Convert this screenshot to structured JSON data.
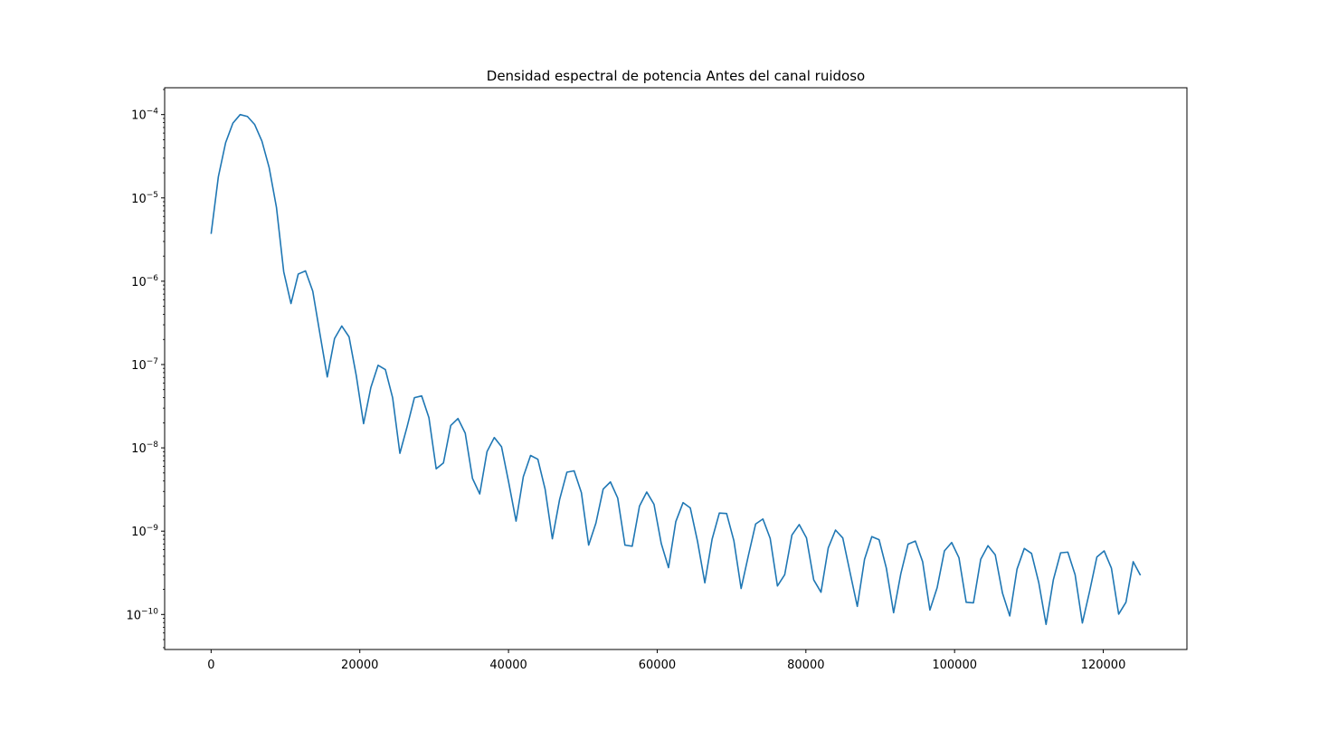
{
  "chart_data": {
    "type": "line",
    "title": "Densidad espectral de potencia Antes del canal ruidoso",
    "xlabel": "",
    "ylabel": "",
    "yscale": "log",
    "xlim": [
      -6250,
      131250
    ],
    "ylim": [
      3.8e-11,
      0.00021
    ],
    "x_ticks": [
      0,
      20000,
      40000,
      60000,
      80000,
      100000,
      120000
    ],
    "x_tick_labels": [
      "0",
      "20000",
      "40000",
      "60000",
      "80000",
      "100000",
      "120000"
    ],
    "y_ticks": [
      1e-10,
      1e-09,
      1e-08,
      1e-07,
      1e-06,
      1e-05,
      0.0001
    ],
    "y_tick_labels": [
      {
        "base": "10",
        "exp": "−10"
      },
      {
        "base": "10",
        "exp": "−9"
      },
      {
        "base": "10",
        "exp": "−8"
      },
      {
        "base": "10",
        "exp": "−7"
      },
      {
        "base": "10",
        "exp": "−6"
      },
      {
        "base": "10",
        "exp": "−5"
      },
      {
        "base": "10",
        "exp": "−4"
      }
    ],
    "grid": false,
    "line_color": "#1f77b4",
    "series": [
      {
        "x": [
          0,
          976.6,
          1953.1,
          2929.7,
          3906.3,
          4882.8,
          5859.4,
          6835.9,
          7812.5,
          8789.1,
          9765.6,
          10742.2,
          11718.8,
          12695.3,
          13671.9,
          14648.4,
          15625,
          16601.6,
          17578.1,
          18554.7,
          19531.3,
          20507.8,
          21484.4,
          22460.9,
          23437.5,
          24414.1,
          25390.6,
          26367.2,
          27343.8,
          28320.3,
          29296.9,
          30273.4,
          31250,
          32226.6,
          33203.1,
          34179.7,
          35156.3,
          36132.8,
          37109.4,
          38085.9,
          39062.5,
          40039.1,
          41015.6,
          41992.2,
          42968.8,
          43945.3,
          44921.9,
          45898.4,
          46875,
          47851.6,
          48828.1,
          49804.7,
          50781.3,
          51757.8,
          52734.4,
          53710.9,
          54687.5,
          55664.1,
          56640.6,
          57617.2,
          58593.8,
          59570.3,
          60546.9,
          61523.4,
          62500,
          63476.6,
          64453.1,
          65429.7,
          66406.3,
          67382.8,
          68359.4,
          69335.9,
          70312.5,
          71289.1,
          72265.6,
          73242.2,
          74218.8,
          75195.3,
          76171.9,
          77148.4,
          78125,
          79101.6,
          80078.1,
          81054.7,
          82031.3,
          83007.8,
          83984.4,
          84960.9,
          85937.5,
          86914.1,
          87890.6,
          88867.2,
          89843.8,
          90820.3,
          91796.9,
          92773.4,
          93750,
          94726.6,
          95703.1,
          96679.7,
          97656.3,
          98632.8,
          99609.4,
          100585.9,
          101562.5,
          102539.1,
          103515.6,
          104492.2,
          105468.8,
          106445.3,
          107421.9,
          108398.4,
          109375,
          110351.6,
          111328.1,
          112304.7,
          113281.3,
          114257.8,
          115234.4,
          116210.9,
          117187.5,
          118164.1,
          119140.6,
          120117.2,
          121093.8,
          122070.3,
          123046.9,
          124023.4,
          125000
        ],
        "y": [
          3.7e-06,
          1.8e-05,
          4.6e-05,
          7.9e-05,
          0.0001,
          9.5e-05,
          7.6e-05,
          4.8e-05,
          2.3e-05,
          7.7e-06,
          1.3e-06,
          5.4e-07,
          1.22e-06,
          1.33e-06,
          7.6e-07,
          2.3e-07,
          7.1e-08,
          2.05e-07,
          2.9e-07,
          2.15e-07,
          7.3e-08,
          1.95e-08,
          5.3e-08,
          9.8e-08,
          8.7e-08,
          4e-08,
          8.6e-09,
          1.8e-08,
          4e-08,
          4.2e-08,
          2.3e-08,
          5.6e-09,
          6.6e-09,
          1.85e-08,
          2.25e-08,
          1.5e-08,
          4.3e-09,
          2.8e-09,
          9e-09,
          1.33e-08,
          1.03e-08,
          3.8e-09,
          1.32e-09,
          4.5e-09,
          8.1e-09,
          7.3e-09,
          3.2e-09,
          8.1e-10,
          2.4e-09,
          5.1e-09,
          5.3e-09,
          2.9e-09,
          6.8e-10,
          1.25e-09,
          3.2e-09,
          3.9e-09,
          2.5e-09,
          6.8e-10,
          6.6e-10,
          2e-09,
          2.95e-09,
          2.1e-09,
          7.1e-10,
          3.65e-10,
          1.3e-09,
          2.2e-09,
          1.9e-09,
          7.5e-10,
          2.4e-10,
          8e-10,
          1.65e-09,
          1.63e-09,
          7.7e-10,
          2.05e-10,
          5.1e-10,
          1.22e-09,
          1.4e-09,
          8.2e-10,
          2.2e-10,
          3e-10,
          9e-10,
          1.2e-09,
          8.3e-10,
          2.6e-10,
          1.85e-10,
          6.3e-10,
          1.03e-09,
          8.3e-10,
          3.2e-10,
          1.25e-10,
          4.6e-10,
          8.6e-10,
          7.9e-10,
          3.6e-10,
          1.05e-10,
          3.1e-10,
          7e-10,
          7.6e-10,
          4.3e-10,
          1.13e-10,
          2.1e-10,
          5.8e-10,
          7.3e-10,
          4.8e-10,
          1.4e-10,
          1.38e-10,
          4.6e-10,
          6.7e-10,
          5.2e-10,
          1.8e-10,
          9.6e-11,
          3.5e-10,
          6.2e-10,
          5.4e-10,
          2.4e-10,
          7.6e-11,
          2.6e-10,
          5.5e-10,
          5.6e-10,
          3e-10,
          7.9e-11,
          1.9e-10,
          4.9e-10,
          5.8e-10,
          3.6e-10,
          1.01e-10,
          1.4e-10,
          4.3e-10,
          2.95e-10
        ]
      }
    ]
  }
}
